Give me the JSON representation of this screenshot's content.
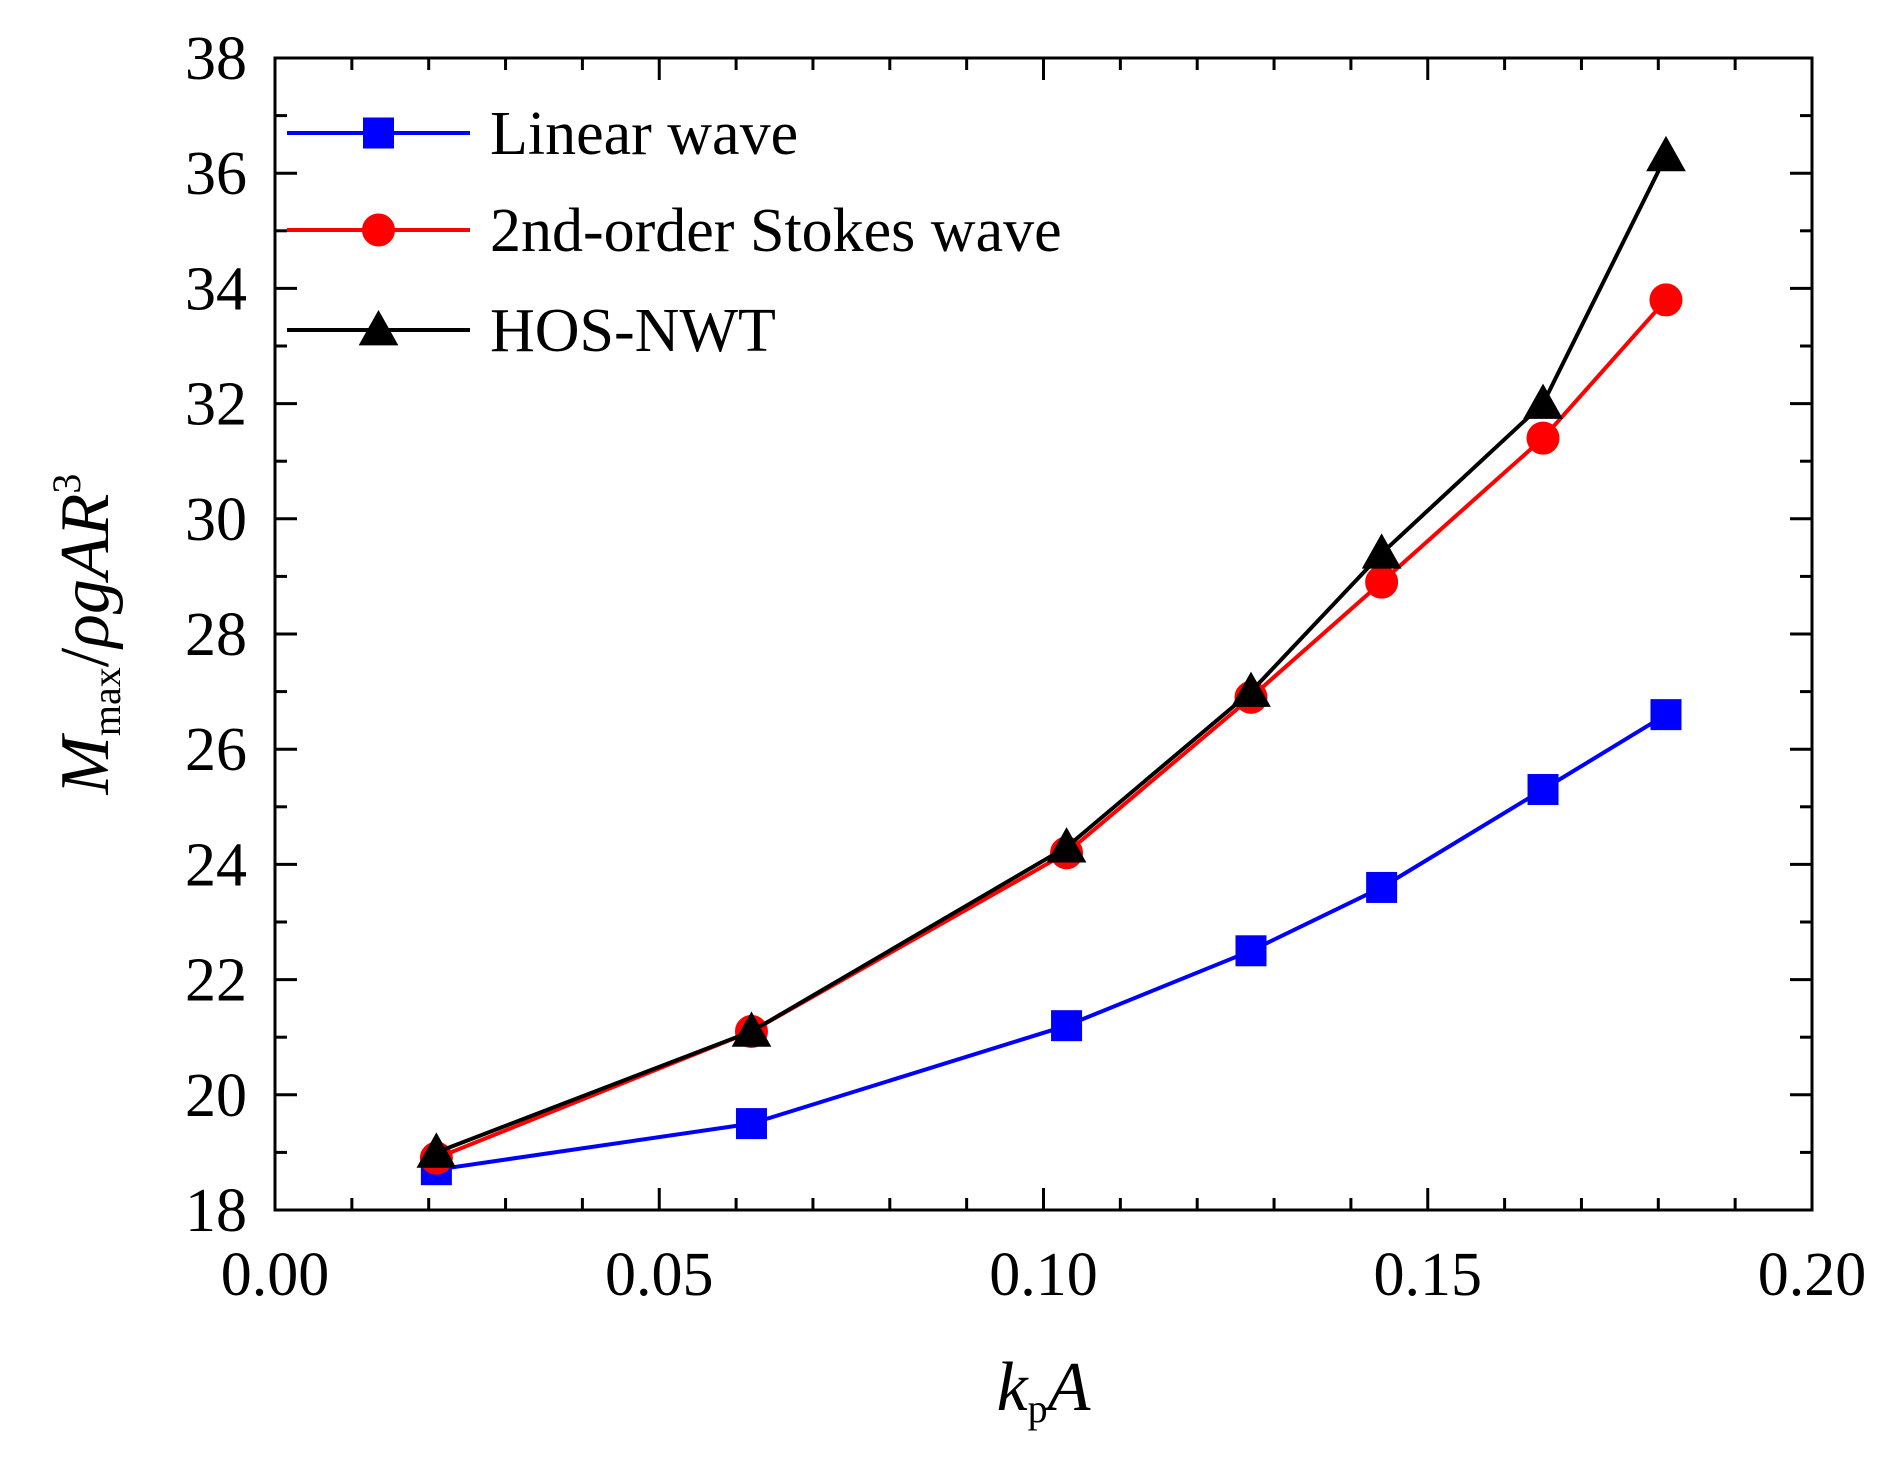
{
  "chart_data": {
    "type": "line",
    "xlabel_parts": [
      {
        "text": "k",
        "style": "italic"
      },
      {
        "text": "p",
        "style": "sub"
      },
      {
        "text": "A",
        "style": "italic"
      }
    ],
    "ylabel_parts": [
      {
        "text": "M",
        "style": "italic"
      },
      {
        "text": "max",
        "style": "sub"
      },
      {
        "text": "/",
        "style": "normal"
      },
      {
        "text": "ρgAR",
        "style": "italic"
      },
      {
        "text": "3",
        "style": "sup"
      }
    ],
    "xlim": [
      0.0,
      0.2
    ],
    "ylim": [
      18,
      38
    ],
    "xticks": [
      0.0,
      0.05,
      0.1,
      0.15,
      0.2
    ],
    "xtick_labels": [
      "0.00",
      "0.05",
      "0.10",
      "0.15",
      "0.20"
    ],
    "yticks": [
      18,
      20,
      22,
      24,
      26,
      28,
      30,
      32,
      34,
      36,
      38
    ],
    "ytick_labels": [
      "18",
      "20",
      "22",
      "24",
      "26",
      "28",
      "30",
      "32",
      "34",
      "36",
      "38"
    ],
    "grid": false,
    "legend_position": "top-left",
    "series": [
      {
        "name": "Linear wave",
        "color": "#0000ff",
        "marker": "square",
        "x": [
          0.021,
          0.062,
          0.103,
          0.127,
          0.144,
          0.165,
          0.181
        ],
        "y": [
          18.7,
          19.5,
          21.2,
          22.5,
          23.6,
          25.3,
          26.6
        ]
      },
      {
        "name": "2nd-order Stokes wave",
        "color": "#ff0000",
        "marker": "circle",
        "x": [
          0.021,
          0.062,
          0.103,
          0.127,
          0.144,
          0.165,
          0.181
        ],
        "y": [
          18.9,
          21.1,
          24.2,
          26.9,
          28.9,
          31.4,
          33.8
        ]
      },
      {
        "name": "HOS-NWT",
        "color": "#000000",
        "marker": "triangle",
        "x": [
          0.021,
          0.062,
          0.103,
          0.127,
          0.144,
          0.165,
          0.181
        ],
        "y": [
          19.0,
          21.1,
          24.3,
          27.0,
          29.4,
          32.0,
          36.3
        ]
      }
    ]
  }
}
